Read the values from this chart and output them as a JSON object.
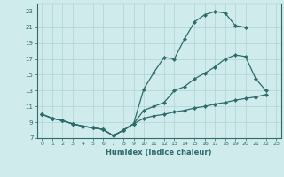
{
  "line1_x": [
    0,
    1,
    2,
    3,
    4,
    5,
    6,
    7,
    8,
    9,
    10,
    11,
    12,
    13,
    14,
    15,
    16,
    17,
    18,
    19,
    20
  ],
  "line1_y": [
    10.0,
    9.5,
    9.2,
    8.8,
    8.5,
    8.3,
    8.1,
    7.3,
    8.0,
    8.8,
    13.2,
    15.3,
    17.2,
    17.0,
    19.5,
    21.7,
    22.6,
    23.0,
    22.8,
    21.2,
    21.0
  ],
  "line2_x": [
    0,
    1,
    2,
    3,
    4,
    5,
    6,
    7,
    8,
    9,
    10,
    11,
    12,
    13,
    14,
    15,
    16,
    17,
    18,
    19,
    20,
    21,
    22
  ],
  "line2_y": [
    10.0,
    9.5,
    9.2,
    8.8,
    8.5,
    8.3,
    8.1,
    7.3,
    8.0,
    8.8,
    10.5,
    11.0,
    11.5,
    13.0,
    13.5,
    14.5,
    15.2,
    16.0,
    17.0,
    17.5,
    17.3,
    14.5,
    13.0
  ],
  "line3_x": [
    0,
    1,
    2,
    3,
    4,
    5,
    6,
    7,
    8,
    9,
    10,
    11,
    12,
    13,
    14,
    15,
    16,
    17,
    18,
    19,
    20,
    21,
    22
  ],
  "line3_y": [
    10.0,
    9.5,
    9.2,
    8.8,
    8.5,
    8.3,
    8.1,
    7.3,
    8.0,
    8.8,
    9.5,
    9.8,
    10.0,
    10.3,
    10.5,
    10.8,
    11.0,
    11.3,
    11.5,
    11.8,
    12.0,
    12.2,
    12.5
  ],
  "line_color": "#2e6b6b",
  "bg_color": "#d0ebeb",
  "grid_color": "#b0d4d4",
  "xlabel": "Humidex (Indice chaleur)",
  "xlim": [
    -0.5,
    23.5
  ],
  "ylim": [
    7,
    24
  ],
  "xtick_labels": [
    "0",
    "1",
    "2",
    "3",
    "4",
    "5",
    "6",
    "7",
    "8",
    "9",
    "10",
    "11",
    "12",
    "13",
    "14",
    "15",
    "16",
    "17",
    "18",
    "19",
    "20",
    "21",
    "22",
    "23"
  ],
  "ytick_values": [
    7,
    9,
    11,
    13,
    15,
    17,
    19,
    21,
    23
  ]
}
